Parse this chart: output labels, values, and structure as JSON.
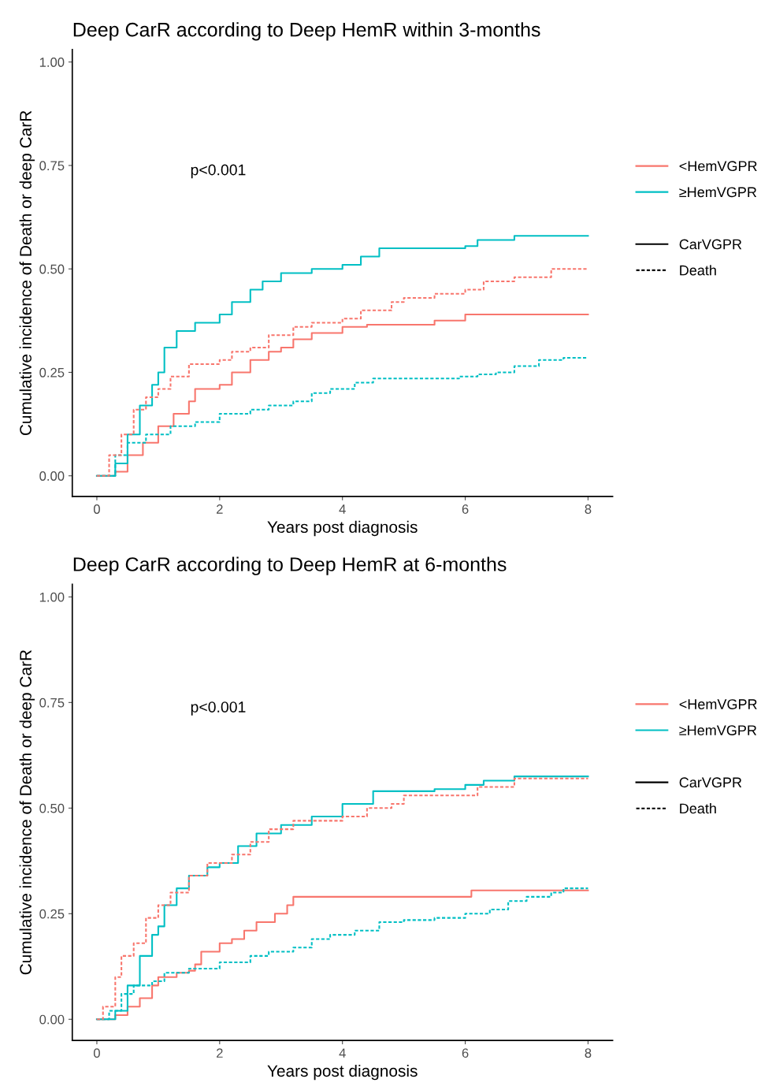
{
  "chart_data": [
    {
      "type": "step",
      "title": "Deep CarR according to Deep HemR within 3-months",
      "xlabel": "Years post diagnosis",
      "ylabel": "Cumulative incidence of Death or deep CarR",
      "xlim": [
        -0.4,
        8.4
      ],
      "ylim": [
        -0.05,
        1.03
      ],
      "xticks": [
        0,
        2,
        4,
        6,
        8
      ],
      "yticks": [
        {
          "value": 0,
          "label": "0.00"
        },
        {
          "value": 0.25,
          "label": "0.25"
        },
        {
          "value": 0.5,
          "label": "0.50"
        },
        {
          "value": 0.75,
          "label": "0.75"
        },
        {
          "value": 1,
          "label": "1.00"
        }
      ],
      "annotations": [
        "p<0.001"
      ],
      "legend": "right",
      "grid": false,
      "series": [
        {
          "name": "<HemVGPR",
          "color": "#f8766d",
          "line_style": "solid",
          "x": [
            0,
            0.3,
            0.5,
            0.75,
            1.0,
            1.25,
            1.5,
            1.6,
            2.0,
            2.2,
            2.5,
            2.8,
            3.0,
            3.2,
            3.5,
            4.0,
            4.4,
            5.5,
            6.0,
            8.0
          ],
          "values": [
            0,
            0.01,
            0.05,
            0.08,
            0.12,
            0.15,
            0.18,
            0.21,
            0.22,
            0.25,
            0.28,
            0.3,
            0.31,
            0.33,
            0.345,
            0.36,
            0.365,
            0.375,
            0.39,
            0.39
          ]
        },
        {
          "name": "≥HemVGPR",
          "color": "#00bfc4",
          "line_style": "solid",
          "x": [
            0,
            0.3,
            0.5,
            0.7,
            0.9,
            1.0,
            1.1,
            1.3,
            1.6,
            2.0,
            2.2,
            2.5,
            2.7,
            3.0,
            3.5,
            4.0,
            4.3,
            4.6,
            6.0,
            6.2,
            6.8,
            8.0
          ],
          "values": [
            0,
            0.03,
            0.1,
            0.17,
            0.22,
            0.25,
            0.31,
            0.35,
            0.37,
            0.39,
            0.42,
            0.45,
            0.47,
            0.49,
            0.5,
            0.51,
            0.53,
            0.55,
            0.555,
            0.57,
            0.58,
            0.58
          ]
        },
        {
          "name": "CarVGPR",
          "color": "#000000",
          "line_style": "solid"
        },
        {
          "color": "#f8766d",
          "line_style": "dashed",
          "x": [
            0,
            0.2,
            0.4,
            0.6,
            0.8,
            1.0,
            1.2,
            1.5,
            2.0,
            2.2,
            2.5,
            2.8,
            3.2,
            3.5,
            4.0,
            4.3,
            4.8,
            5.0,
            5.5,
            6.0,
            6.3,
            6.8,
            7.4,
            8.0
          ],
          "values": [
            0,
            0.05,
            0.1,
            0.16,
            0.19,
            0.21,
            0.24,
            0.27,
            0.28,
            0.3,
            0.31,
            0.34,
            0.36,
            0.37,
            0.38,
            0.4,
            0.42,
            0.43,
            0.44,
            0.45,
            0.47,
            0.48,
            0.5,
            0.5
          ]
        },
        {
          "color": "#00bfc4",
          "line_style": "dashed",
          "x": [
            0,
            0.3,
            0.5,
            0.8,
            1.2,
            1.6,
            2.0,
            2.5,
            2.8,
            3.2,
            3.5,
            3.8,
            4.2,
            4.5,
            5.0,
            5.9,
            6.2,
            6.5,
            6.8,
            7.2,
            7.6,
            8.0
          ],
          "values": [
            0,
            0.05,
            0.08,
            0.1,
            0.12,
            0.13,
            0.15,
            0.16,
            0.17,
            0.18,
            0.2,
            0.21,
            0.225,
            0.235,
            0.235,
            0.24,
            0.245,
            0.25,
            0.265,
            0.28,
            0.285,
            0.285
          ]
        },
        {
          "name": "Death",
          "color": "#000000",
          "line_style": "dashed"
        }
      ]
    },
    {
      "type": "step",
      "title": "Deep CarR according to Deep HemR at 6-months",
      "xlabel": "Years post diagnosis",
      "ylabel": "Cumulative incidence of Death or deep CarR",
      "xlim": [
        -0.4,
        8.4
      ],
      "ylim": [
        -0.05,
        1.03
      ],
      "xticks": [
        0,
        2,
        4,
        6,
        8
      ],
      "yticks": [
        {
          "value": 0,
          "label": "0.00"
        },
        {
          "value": 0.25,
          "label": "0.25"
        },
        {
          "value": 0.5,
          "label": "0.50"
        },
        {
          "value": 0.75,
          "label": "0.75"
        },
        {
          "value": 1,
          "label": "1.00"
        }
      ],
      "annotations": [
        "p<0.001"
      ],
      "legend": "right",
      "grid": false,
      "series": [
        {
          "name": "<HemVGPR",
          "color": "#f8766d",
          "line_style": "solid",
          "x": [
            0,
            0.3,
            0.5,
            0.7,
            0.9,
            1.0,
            1.3,
            1.5,
            1.6,
            1.7,
            2.0,
            2.2,
            2.4,
            2.6,
            2.9,
            3.1,
            3.2,
            6.0,
            6.1,
            8.0
          ],
          "values": [
            0,
            0.01,
            0.03,
            0.05,
            0.08,
            0.1,
            0.11,
            0.115,
            0.13,
            0.16,
            0.18,
            0.19,
            0.21,
            0.23,
            0.25,
            0.27,
            0.29,
            0.29,
            0.305,
            0.305
          ]
        },
        {
          "name": "≥HemVGPR",
          "color": "#00bfc4",
          "line_style": "solid",
          "x": [
            0,
            0.3,
            0.5,
            0.7,
            0.9,
            1.0,
            1.1,
            1.3,
            1.5,
            1.8,
            2.0,
            2.3,
            2.6,
            3.0,
            3.5,
            4.0,
            4.5,
            5.5,
            6.0,
            6.3,
            6.8,
            8.0
          ],
          "values": [
            0,
            0.02,
            0.08,
            0.15,
            0.2,
            0.22,
            0.27,
            0.31,
            0.34,
            0.36,
            0.37,
            0.41,
            0.44,
            0.46,
            0.48,
            0.51,
            0.54,
            0.545,
            0.555,
            0.565,
            0.575,
            0.575
          ]
        },
        {
          "name": "CarVGPR",
          "color": "#000000",
          "line_style": "solid"
        },
        {
          "color": "#f8766d",
          "line_style": "dashed",
          "x": [
            0,
            0.1,
            0.3,
            0.4,
            0.6,
            0.8,
            1.0,
            1.2,
            1.5,
            1.8,
            2.2,
            2.5,
            2.8,
            3.2,
            3.5,
            4.0,
            4.4,
            4.8,
            5.0,
            6.0,
            6.2,
            6.8,
            8.0
          ],
          "values": [
            0,
            0.03,
            0.1,
            0.15,
            0.18,
            0.24,
            0.27,
            0.3,
            0.34,
            0.37,
            0.39,
            0.42,
            0.45,
            0.47,
            0.47,
            0.48,
            0.5,
            0.51,
            0.53,
            0.53,
            0.55,
            0.57,
            0.57
          ]
        },
        {
          "color": "#00bfc4",
          "line_style": "dashed",
          "x": [
            0,
            0.2,
            0.4,
            0.6,
            0.9,
            1.1,
            1.5,
            2.0,
            2.5,
            2.8,
            3.2,
            3.5,
            3.8,
            4.2,
            4.6,
            5.0,
            5.5,
            6.0,
            6.4,
            6.7,
            7.0,
            7.4,
            7.6,
            8.0
          ],
          "values": [
            0,
            0.02,
            0.06,
            0.08,
            0.09,
            0.11,
            0.12,
            0.135,
            0.15,
            0.16,
            0.17,
            0.19,
            0.2,
            0.21,
            0.23,
            0.235,
            0.24,
            0.25,
            0.26,
            0.28,
            0.29,
            0.3,
            0.31,
            0.31
          ]
        },
        {
          "name": "Death",
          "color": "#000000",
          "line_style": "dashed"
        }
      ]
    }
  ]
}
